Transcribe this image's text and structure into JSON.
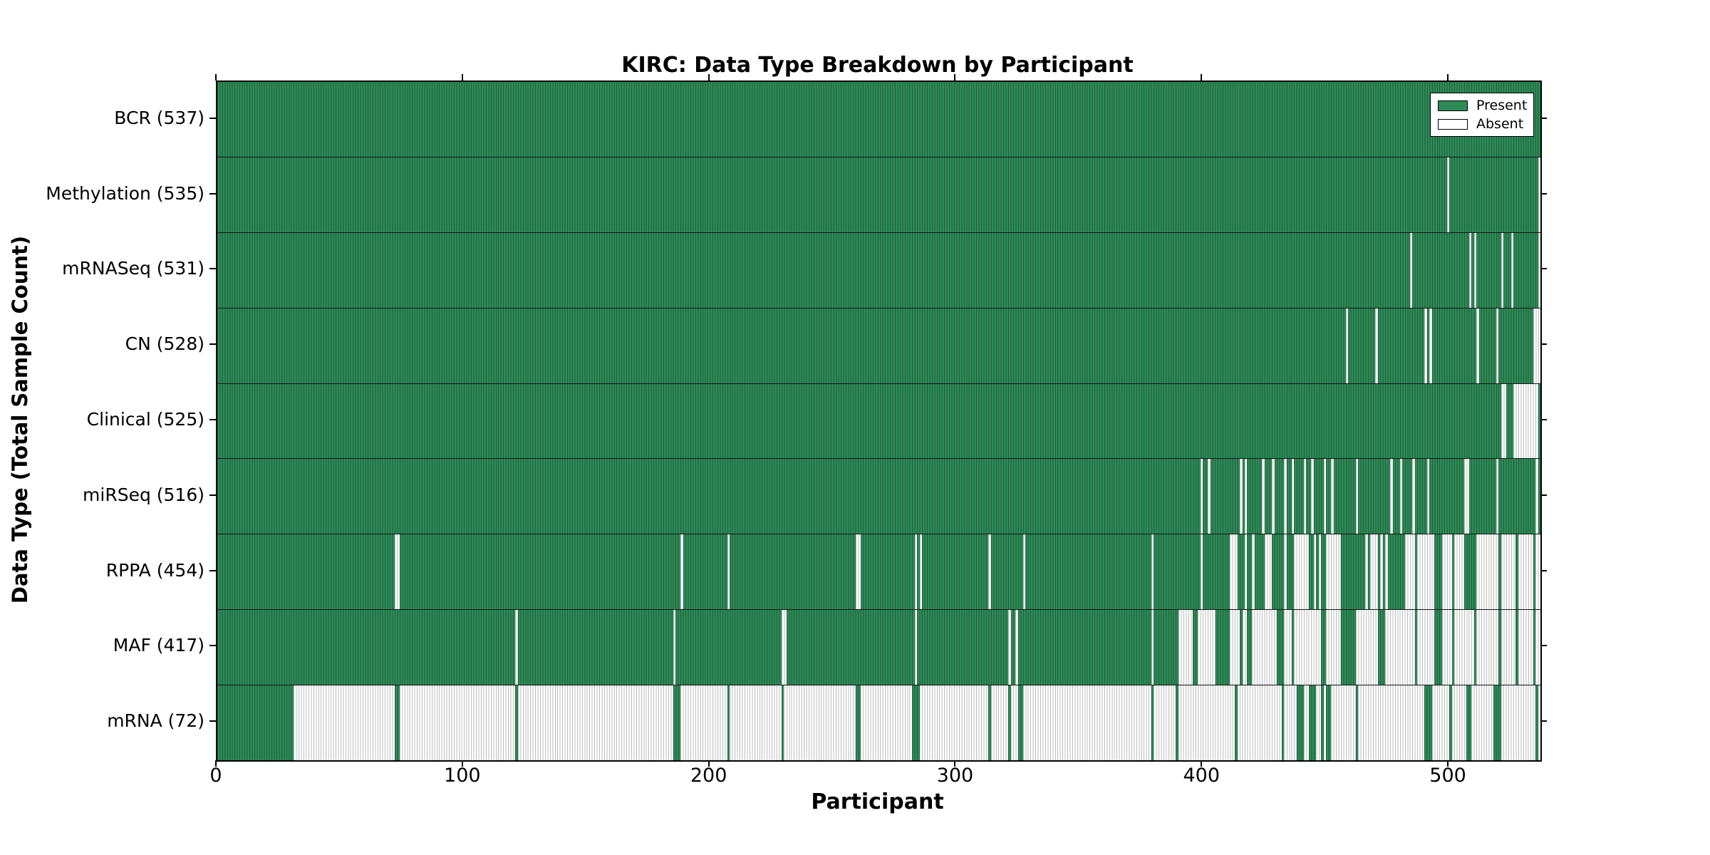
{
  "title": "KIRC: Data Type Breakdown by Participant",
  "legend": {
    "present_label": "Present",
    "absent_label": "Absent"
  },
  "axes": {
    "x_label": "Participant",
    "y_label": "Data Type (Total Sample Count)",
    "x_ticks": [
      0,
      100,
      200,
      300,
      400,
      500
    ],
    "x_range": [
      0,
      537
    ]
  },
  "colors": {
    "present": "#2e8b57",
    "present_edge": "#1f5f3e",
    "absent": "#ffffff",
    "absent_edge": "#bcbcbc"
  },
  "chart_data": {
    "type": "heatmap",
    "n_participants": 537,
    "legend_position": "upper right",
    "rows": [
      {
        "name": "BCR",
        "label": "BCR (537)",
        "count": 537,
        "base": "present",
        "absent_ranges": []
      },
      {
        "name": "Methylation",
        "label": "Methylation (535)",
        "count": 535,
        "base": "present",
        "absent_ranges": [
          [
            499,
            499
          ],
          [
            536,
            536
          ]
        ]
      },
      {
        "name": "mRNASeq",
        "label": "mRNASeq (531)",
        "count": 531,
        "base": "present",
        "absent_ranges": [
          [
            484,
            484
          ],
          [
            508,
            508
          ],
          [
            510,
            510
          ],
          [
            521,
            521
          ],
          [
            525,
            525
          ],
          [
            536,
            536
          ]
        ]
      },
      {
        "name": "CN",
        "label": "CN (528)",
        "count": 528,
        "base": "present",
        "absent_ranges": [
          [
            458,
            458
          ],
          [
            470,
            470
          ],
          [
            490,
            490
          ],
          [
            492,
            492
          ],
          [
            511,
            511
          ],
          [
            519,
            519
          ],
          [
            534,
            536
          ]
        ]
      },
      {
        "name": "Clinical",
        "label": "Clinical (525)",
        "count": 525,
        "base": "present",
        "absent_ranges": [
          [
            521,
            522
          ],
          [
            526,
            535
          ]
        ]
      },
      {
        "name": "miRSeq",
        "label": "miRSeq (516)",
        "count": 516,
        "base": "present",
        "absent_ranges": [
          [
            399,
            399
          ],
          [
            402,
            402
          ],
          [
            415,
            415
          ],
          [
            417,
            417
          ],
          [
            424,
            424
          ],
          [
            428,
            428
          ],
          [
            433,
            433
          ],
          [
            436,
            436
          ],
          [
            441,
            441
          ],
          [
            444,
            444
          ],
          [
            449,
            449
          ],
          [
            452,
            452
          ],
          [
            462,
            462
          ],
          [
            476,
            476
          ],
          [
            480,
            480
          ],
          [
            485,
            485
          ],
          [
            491,
            491
          ],
          [
            506,
            507
          ],
          [
            519,
            519
          ],
          [
            535,
            535
          ]
        ]
      },
      {
        "name": "RPPA",
        "label": "RPPA (454)",
        "count": 454,
        "base": "present",
        "absent_ranges": [
          [
            72,
            73
          ],
          [
            188,
            188
          ],
          [
            207,
            207
          ],
          [
            259,
            260
          ],
          [
            283,
            283
          ],
          [
            285,
            285
          ],
          [
            313,
            313
          ],
          [
            327,
            327
          ],
          [
            379,
            379
          ],
          [
            399,
            399
          ],
          [
            411,
            413
          ],
          [
            417,
            417
          ],
          [
            420,
            420
          ],
          [
            425,
            427
          ],
          [
            433,
            433
          ],
          [
            437,
            442
          ],
          [
            445,
            445
          ],
          [
            447,
            447
          ],
          [
            450,
            455
          ],
          [
            466,
            466
          ],
          [
            468,
            470
          ],
          [
            472,
            472
          ],
          [
            474,
            474
          ],
          [
            482,
            485
          ],
          [
            487,
            493
          ],
          [
            497,
            500
          ],
          [
            502,
            505
          ],
          [
            511,
            519
          ],
          [
            521,
            526
          ],
          [
            528,
            533
          ],
          [
            535,
            536
          ]
        ]
      },
      {
        "name": "MAF",
        "label": "MAF (417)",
        "count": 417,
        "base": "present",
        "absent_ranges": [
          [
            121,
            121
          ],
          [
            185,
            185
          ],
          [
            229,
            230
          ],
          [
            283,
            283
          ],
          [
            321,
            321
          ],
          [
            324,
            324
          ],
          [
            379,
            379
          ],
          [
            390,
            395
          ],
          [
            398,
            404
          ],
          [
            411,
            414
          ],
          [
            416,
            417
          ],
          [
            420,
            429
          ],
          [
            433,
            435
          ],
          [
            437,
            447
          ],
          [
            450,
            455
          ],
          [
            462,
            470
          ],
          [
            474,
            485
          ],
          [
            487,
            493
          ],
          [
            497,
            500
          ],
          [
            502,
            509
          ],
          [
            511,
            519
          ],
          [
            521,
            526
          ],
          [
            528,
            533
          ],
          [
            535,
            536
          ]
        ]
      },
      {
        "name": "mRNA",
        "label": "mRNA (72)",
        "count": 72,
        "base": "absent",
        "present_ranges": [
          [
            0,
            30
          ],
          [
            72,
            73
          ],
          [
            121,
            121
          ],
          [
            185,
            187
          ],
          [
            207,
            207
          ],
          [
            229,
            229
          ],
          [
            259,
            260
          ],
          [
            282,
            284
          ],
          [
            313,
            313
          ],
          [
            321,
            321
          ],
          [
            325,
            326
          ],
          [
            379,
            379
          ],
          [
            389,
            389
          ],
          [
            413,
            413
          ],
          [
            432,
            432
          ],
          [
            438,
            440
          ],
          [
            443,
            445
          ],
          [
            448,
            448
          ],
          [
            450,
            451
          ],
          [
            462,
            462
          ],
          [
            490,
            492
          ],
          [
            500,
            500
          ],
          [
            507,
            508
          ],
          [
            518,
            520
          ],
          [
            535,
            535
          ]
        ]
      }
    ]
  }
}
